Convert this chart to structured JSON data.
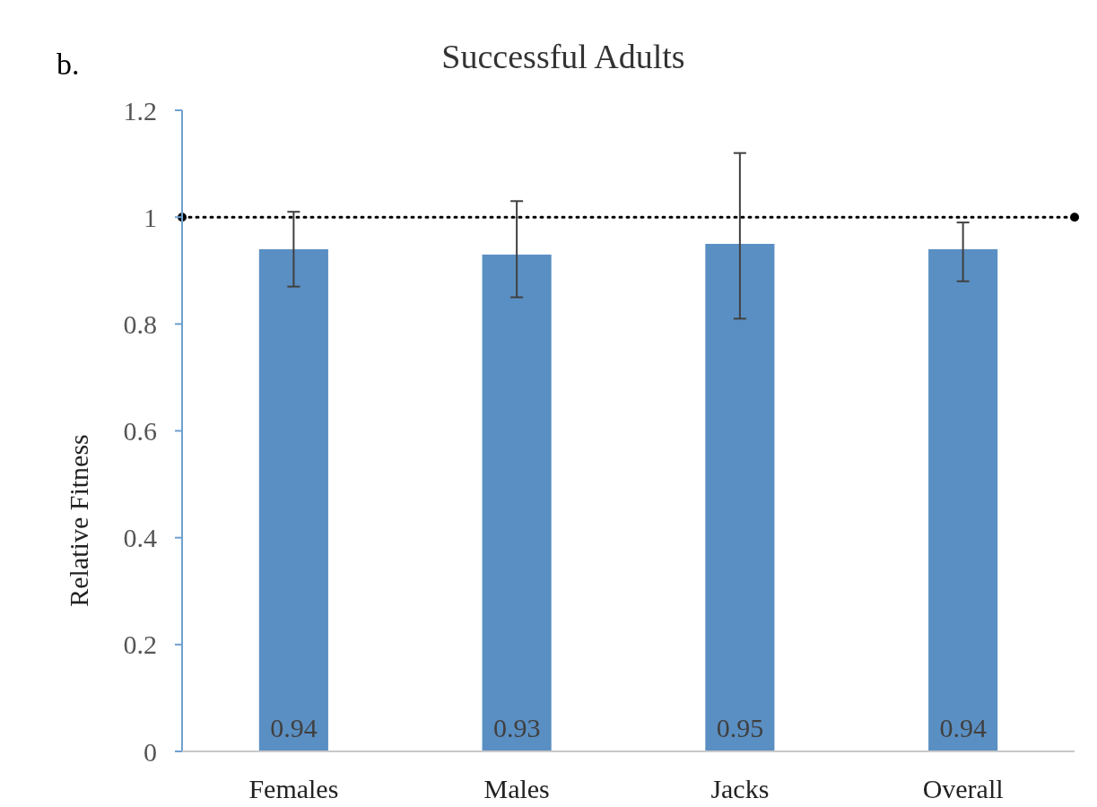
{
  "chart_data": {
    "type": "bar",
    "title": "Successful Adults",
    "ylabel": "Relative Fitness",
    "annotations": [
      "b."
    ],
    "categories": [
      "Females",
      "Males",
      "Jacks",
      "Overall"
    ],
    "values": [
      0.94,
      0.93,
      0.95,
      0.94
    ],
    "errors": [
      [
        0.87,
        1.01
      ],
      [
        0.85,
        1.03
      ],
      [
        0.81,
        1.12
      ],
      [
        0.88,
        0.99
      ]
    ],
    "color": "#5a8fc3",
    "data_labels": true,
    "ylim": [
      0,
      1.2
    ],
    "yticks": [
      0,
      0.2,
      0.4,
      0.6,
      0.8,
      1,
      1.2
    ],
    "ref_lines": [
      {
        "axis": "y",
        "value": 1,
        "color": "#000000",
        "line_style": "dotted"
      }
    ],
    "grid": false
  }
}
